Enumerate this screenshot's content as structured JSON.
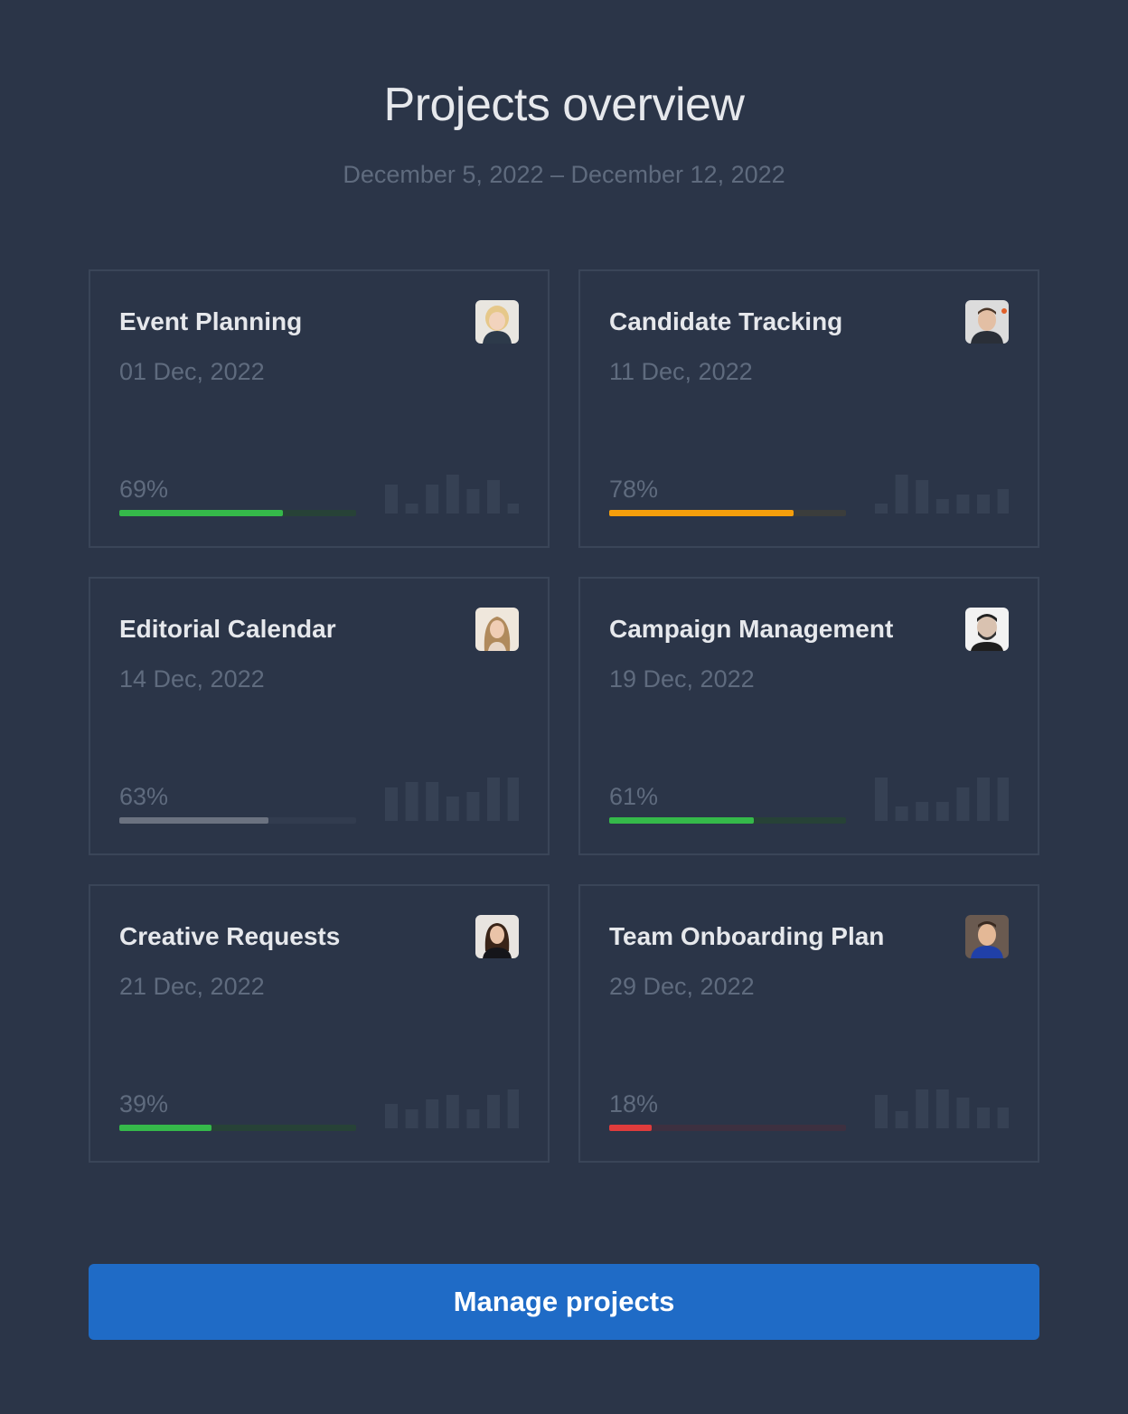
{
  "header": {
    "title": "Projects overview",
    "date_range": "December 5, 2022 – December 12, 2022"
  },
  "colors": {
    "green": "#35b94a",
    "orange": "#f59e0b",
    "gray": "#6b7280",
    "red": "#e03c3c"
  },
  "projects": [
    {
      "name": "Event Planning",
      "date": "01 Dec, 2022",
      "progress_label": "69%",
      "progress": 0.69,
      "bar_color": "#35b94a",
      "track_color": "#274237",
      "avatar": "avatar-woman-blonde",
      "trend": [
        3,
        1,
        3,
        4,
        2.5,
        3.5,
        1
      ]
    },
    {
      "name": "Candidate Tracking",
      "date": "11 Dec, 2022",
      "progress_label": "78%",
      "progress": 0.78,
      "bar_color": "#f59e0b",
      "track_color": "#3b3d3c",
      "avatar": "avatar-man-shortcut",
      "trend": [
        1,
        4,
        3.5,
        1.5,
        2,
        2,
        2.5
      ]
    },
    {
      "name": "Editorial Calendar",
      "date": "14 Dec, 2022",
      "progress_label": "63%",
      "progress": 0.63,
      "bar_color": "#6b7280",
      "track_color": "#323c4f",
      "avatar": "avatar-woman-longhair",
      "trend": [
        3.5,
        4,
        4,
        2.5,
        3,
        4.5,
        4.5
      ]
    },
    {
      "name": "Campaign Management",
      "date": "19 Dec, 2022",
      "progress_label": "61%",
      "progress": 0.61,
      "bar_color": "#35b94a",
      "track_color": "#274237",
      "avatar": "avatar-man-beard",
      "trend": [
        4.5,
        1.5,
        2,
        2,
        3.5,
        4.5,
        4.5
      ]
    },
    {
      "name": "Creative Requests",
      "date": "21 Dec, 2022",
      "progress_label": "39%",
      "progress": 0.39,
      "bar_color": "#35b94a",
      "track_color": "#274237",
      "avatar": "avatar-woman-darkhair",
      "trend": [
        2.5,
        2,
        3,
        3.5,
        2,
        3.5,
        4
      ]
    },
    {
      "name": "Team Onboarding Plan",
      "date": "29 Dec, 2022",
      "progress_label": "18%",
      "progress": 0.18,
      "bar_color": "#e03c3c",
      "track_color": "#3d3040",
      "avatar": "avatar-man-glasses",
      "trend": [
        3.5,
        1.8,
        4,
        4,
        3.2,
        2.2,
        2.2
      ]
    }
  ],
  "footer": {
    "button_label": "Manage projects"
  }
}
